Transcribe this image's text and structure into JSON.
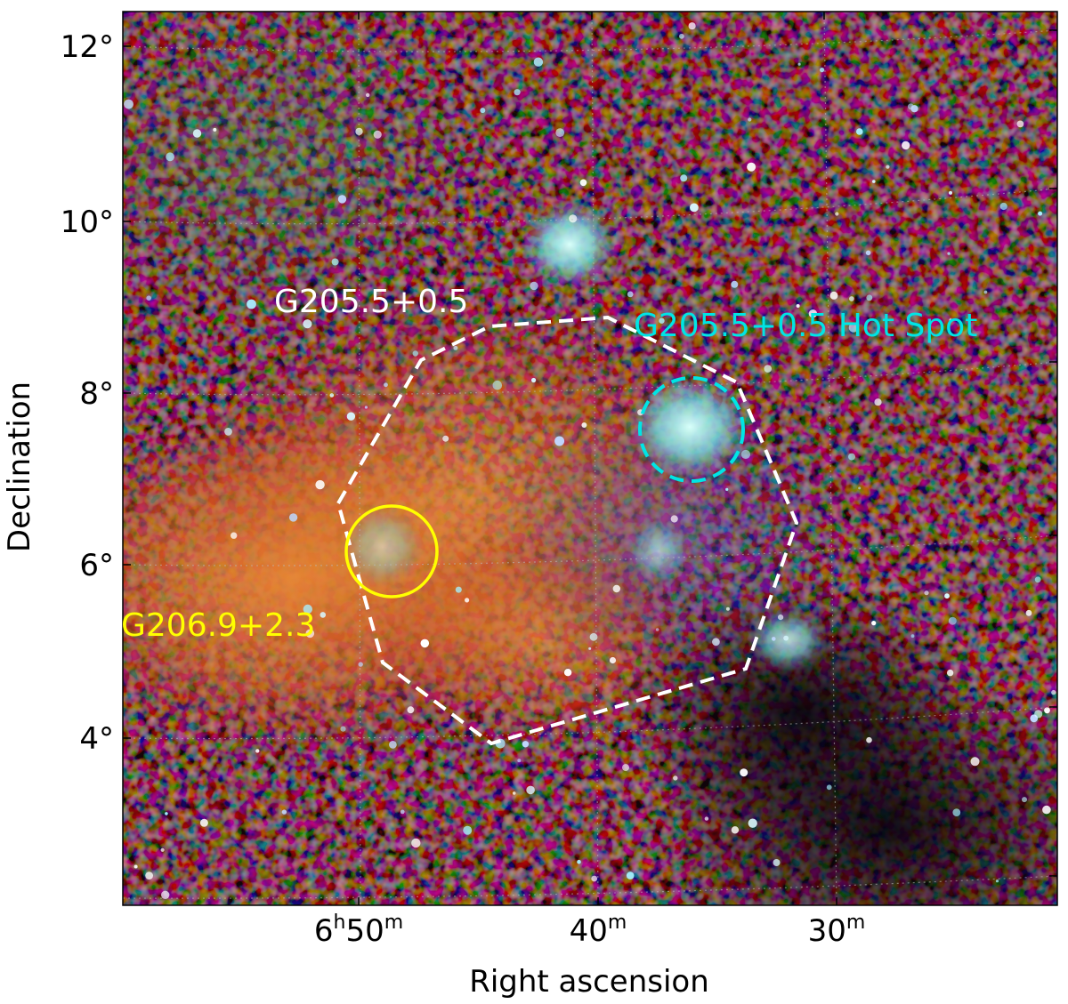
{
  "axes": {
    "xlabel": "Right ascension",
    "ylabel": "Declination",
    "y_ticks": [
      "12°",
      "10°",
      "8°",
      "6°",
      "4°"
    ],
    "x_ticks": [
      {
        "main": "6",
        "sup1": "h",
        "main2": "50",
        "sup2": "m"
      },
      {
        "main": "",
        "sup1": "",
        "main2": "40",
        "sup2": "m"
      },
      {
        "main": "",
        "sup1": "",
        "main2": "30",
        "sup2": "m"
      }
    ],
    "grid": "dotted",
    "frame_color": "#000000"
  },
  "regions": [
    {
      "name": "G205.5+0.5",
      "label": "G205.5+0.5",
      "color": "#ffffff",
      "shape": "polygon",
      "style": "dashed"
    },
    {
      "name": "G205.5+0.5 Hot Spot",
      "label": "G205.5+0.5 Hot Spot",
      "color": "#00e5e5",
      "shape": "circle",
      "style": "dashed"
    },
    {
      "name": "G206.9+2.3",
      "label": "G206.9+2.3",
      "color": "#ffff00",
      "shape": "circle",
      "style": "solid"
    }
  ],
  "image": {
    "kind": "RGB X-ray sky map",
    "colors": {
      "red": "#c0202a",
      "green": "#2e8a4a",
      "blue": "#2540b0",
      "orange": "#e8872a",
      "cyan": "#8fe8e0",
      "background": "#0a0612"
    }
  }
}
